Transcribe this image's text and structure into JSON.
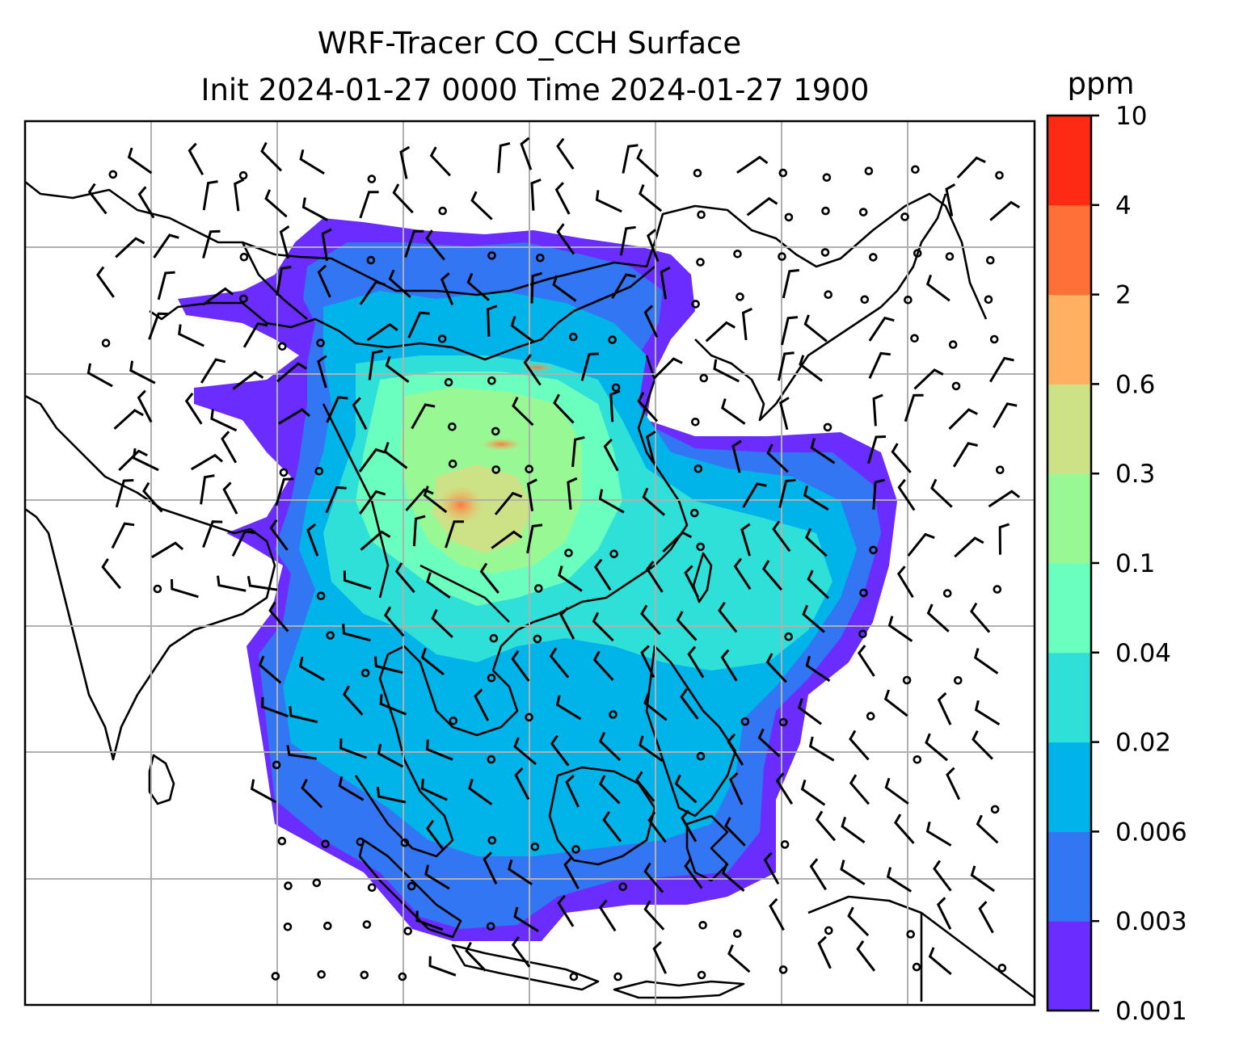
{
  "title": {
    "line1": "WRF-Tracer CO_CCH Surface",
    "line2": "Init 2024-01-27 0000 Time 2024-01-27 1900"
  },
  "colorbar": {
    "unit": "ppm",
    "levels": [
      "0.001",
      "0.003",
      "0.006",
      "0.02",
      "0.04",
      "0.1",
      "0.3",
      "0.6",
      "2",
      "4",
      "10"
    ],
    "colors": [
      "#6a2cff",
      "#3376f3",
      "#00b4e9",
      "#2fe0d8",
      "#6affbe",
      "#98f994",
      "#cde286",
      "#ffb060",
      "#ff6f38",
      "#ff2a14"
    ]
  },
  "map": {
    "projection": "plate-carree",
    "gridlines": true,
    "coastlines": true,
    "wind_barbs": true,
    "field": "CO_CCH surface concentration"
  }
}
